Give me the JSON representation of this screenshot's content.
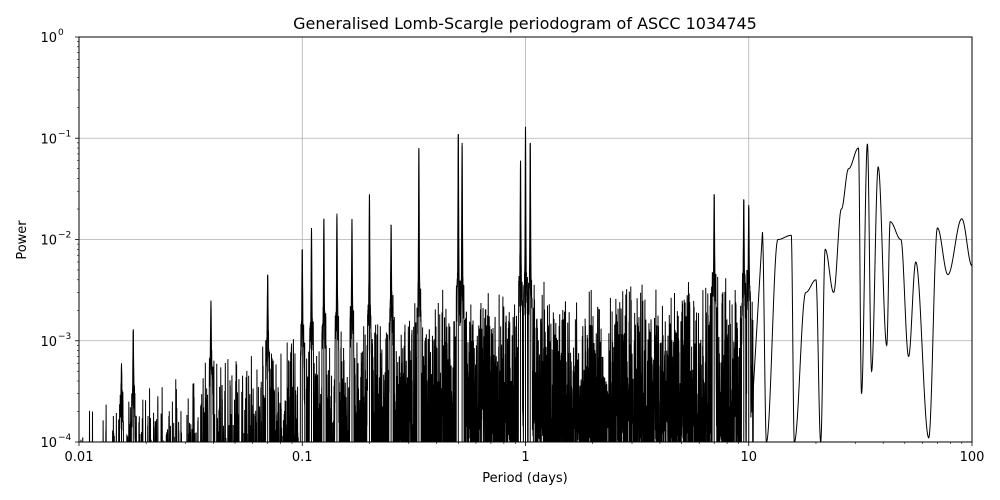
{
  "chart_data": {
    "type": "line",
    "title": "Generalised Lomb-Scargle periodogram of ASCC 1034745",
    "xlabel": "Period (days)",
    "ylabel": "Power",
    "x_scale": "log",
    "y_scale": "log",
    "xlim": [
      0.01,
      100
    ],
    "ylim": [
      0.0001,
      1
    ],
    "grid": true,
    "line_color": "#000000",
    "x_ticks": [
      {
        "value": 0.01,
        "label": "0.01"
      },
      {
        "value": 0.1,
        "label": "0.1"
      },
      {
        "value": 1,
        "label": "1"
      },
      {
        "value": 10,
        "label": "10"
      },
      {
        "value": 100,
        "label": "100"
      }
    ],
    "y_ticks": [
      {
        "value": 0.0001,
        "base": "10",
        "exp": "−4"
      },
      {
        "value": 0.001,
        "base": "10",
        "exp": "−3"
      },
      {
        "value": 0.01,
        "base": "10",
        "exp": "−2"
      },
      {
        "value": 0.1,
        "base": "10",
        "exp": "−1"
      },
      {
        "value": 1,
        "base": "10",
        "exp": "0"
      }
    ],
    "noise_envelope": [
      {
        "period": 0.01,
        "power": 0.00022
      },
      {
        "period": 0.02,
        "power": 0.0004
      },
      {
        "period": 0.05,
        "power": 0.0009
      },
      {
        "period": 0.1,
        "power": 0.0016
      },
      {
        "period": 0.2,
        "power": 0.0025
      },
      {
        "period": 0.5,
        "power": 0.004
      },
      {
        "period": 1,
        "power": 0.0045
      },
      {
        "period": 2,
        "power": 0.004
      },
      {
        "period": 5,
        "power": 0.005
      }
    ],
    "peaks": [
      {
        "period": 0.0155,
        "power": 0.0006
      },
      {
        "period": 0.0175,
        "power": 0.0013
      },
      {
        "period": 0.039,
        "power": 0.0025
      },
      {
        "period": 0.07,
        "power": 0.0045
      },
      {
        "period": 0.1,
        "power": 0.008
      },
      {
        "period": 0.11,
        "power": 0.013
      },
      {
        "period": 0.125,
        "power": 0.016
      },
      {
        "period": 0.143,
        "power": 0.018
      },
      {
        "period": 0.167,
        "power": 0.016
      },
      {
        "period": 0.2,
        "power": 0.028
      },
      {
        "period": 0.25,
        "power": 0.014
      },
      {
        "period": 0.333,
        "power": 0.08
      },
      {
        "period": 0.5,
        "power": 0.11
      },
      {
        "period": 0.52,
        "power": 0.09
      },
      {
        "period": 0.95,
        "power": 0.06
      },
      {
        "period": 1.0,
        "power": 0.13
      },
      {
        "period": 1.05,
        "power": 0.09
      },
      {
        "period": 7.0,
        "power": 0.028
      },
      {
        "period": 9.5,
        "power": 0.025
      },
      {
        "period": 10.0,
        "power": 0.022
      }
    ],
    "long_period_oscillation": [
      {
        "period": 11.5,
        "power": 0.012
      },
      {
        "period": 13.5,
        "power": 0.01
      },
      {
        "period": 15.5,
        "power": 0.011
      },
      {
        "period": 18.0,
        "power": 0.003
      },
      {
        "period": 20.0,
        "power": 0.004
      },
      {
        "period": 22.0,
        "power": 0.008
      },
      {
        "period": 24.0,
        "power": 0.003
      },
      {
        "period": 26.0,
        "power": 0.02
      },
      {
        "period": 28.0,
        "power": 0.05
      },
      {
        "period": 31.0,
        "power": 0.08
      },
      {
        "period": 34.0,
        "power": 0.088
      },
      {
        "period": 38.0,
        "power": 0.052
      },
      {
        "period": 43.0,
        "power": 0.015
      },
      {
        "period": 48.0,
        "power": 0.01
      },
      {
        "period": 56.0,
        "power": 0.006
      },
      {
        "period": 70.0,
        "power": 0.013
      },
      {
        "period": 90.0,
        "power": 0.016
      },
      {
        "period": 100.0,
        "power": 0.0055
      }
    ],
    "minima": [
      {
        "period": 12.0,
        "power": 0.0001
      },
      {
        "period": 16.0,
        "power": 0.0001
      },
      {
        "period": 21.0,
        "power": 0.0001
      },
      {
        "period": 32.0,
        "power": 0.0003
      },
      {
        "period": 35.5,
        "power": 0.0005
      },
      {
        "period": 41.5,
        "power": 0.0009
      },
      {
        "period": 52.0,
        "power": 0.0007
      },
      {
        "period": 64.0,
        "power": 0.00011
      },
      {
        "period": 78.0,
        "power": 0.0045
      }
    ]
  }
}
